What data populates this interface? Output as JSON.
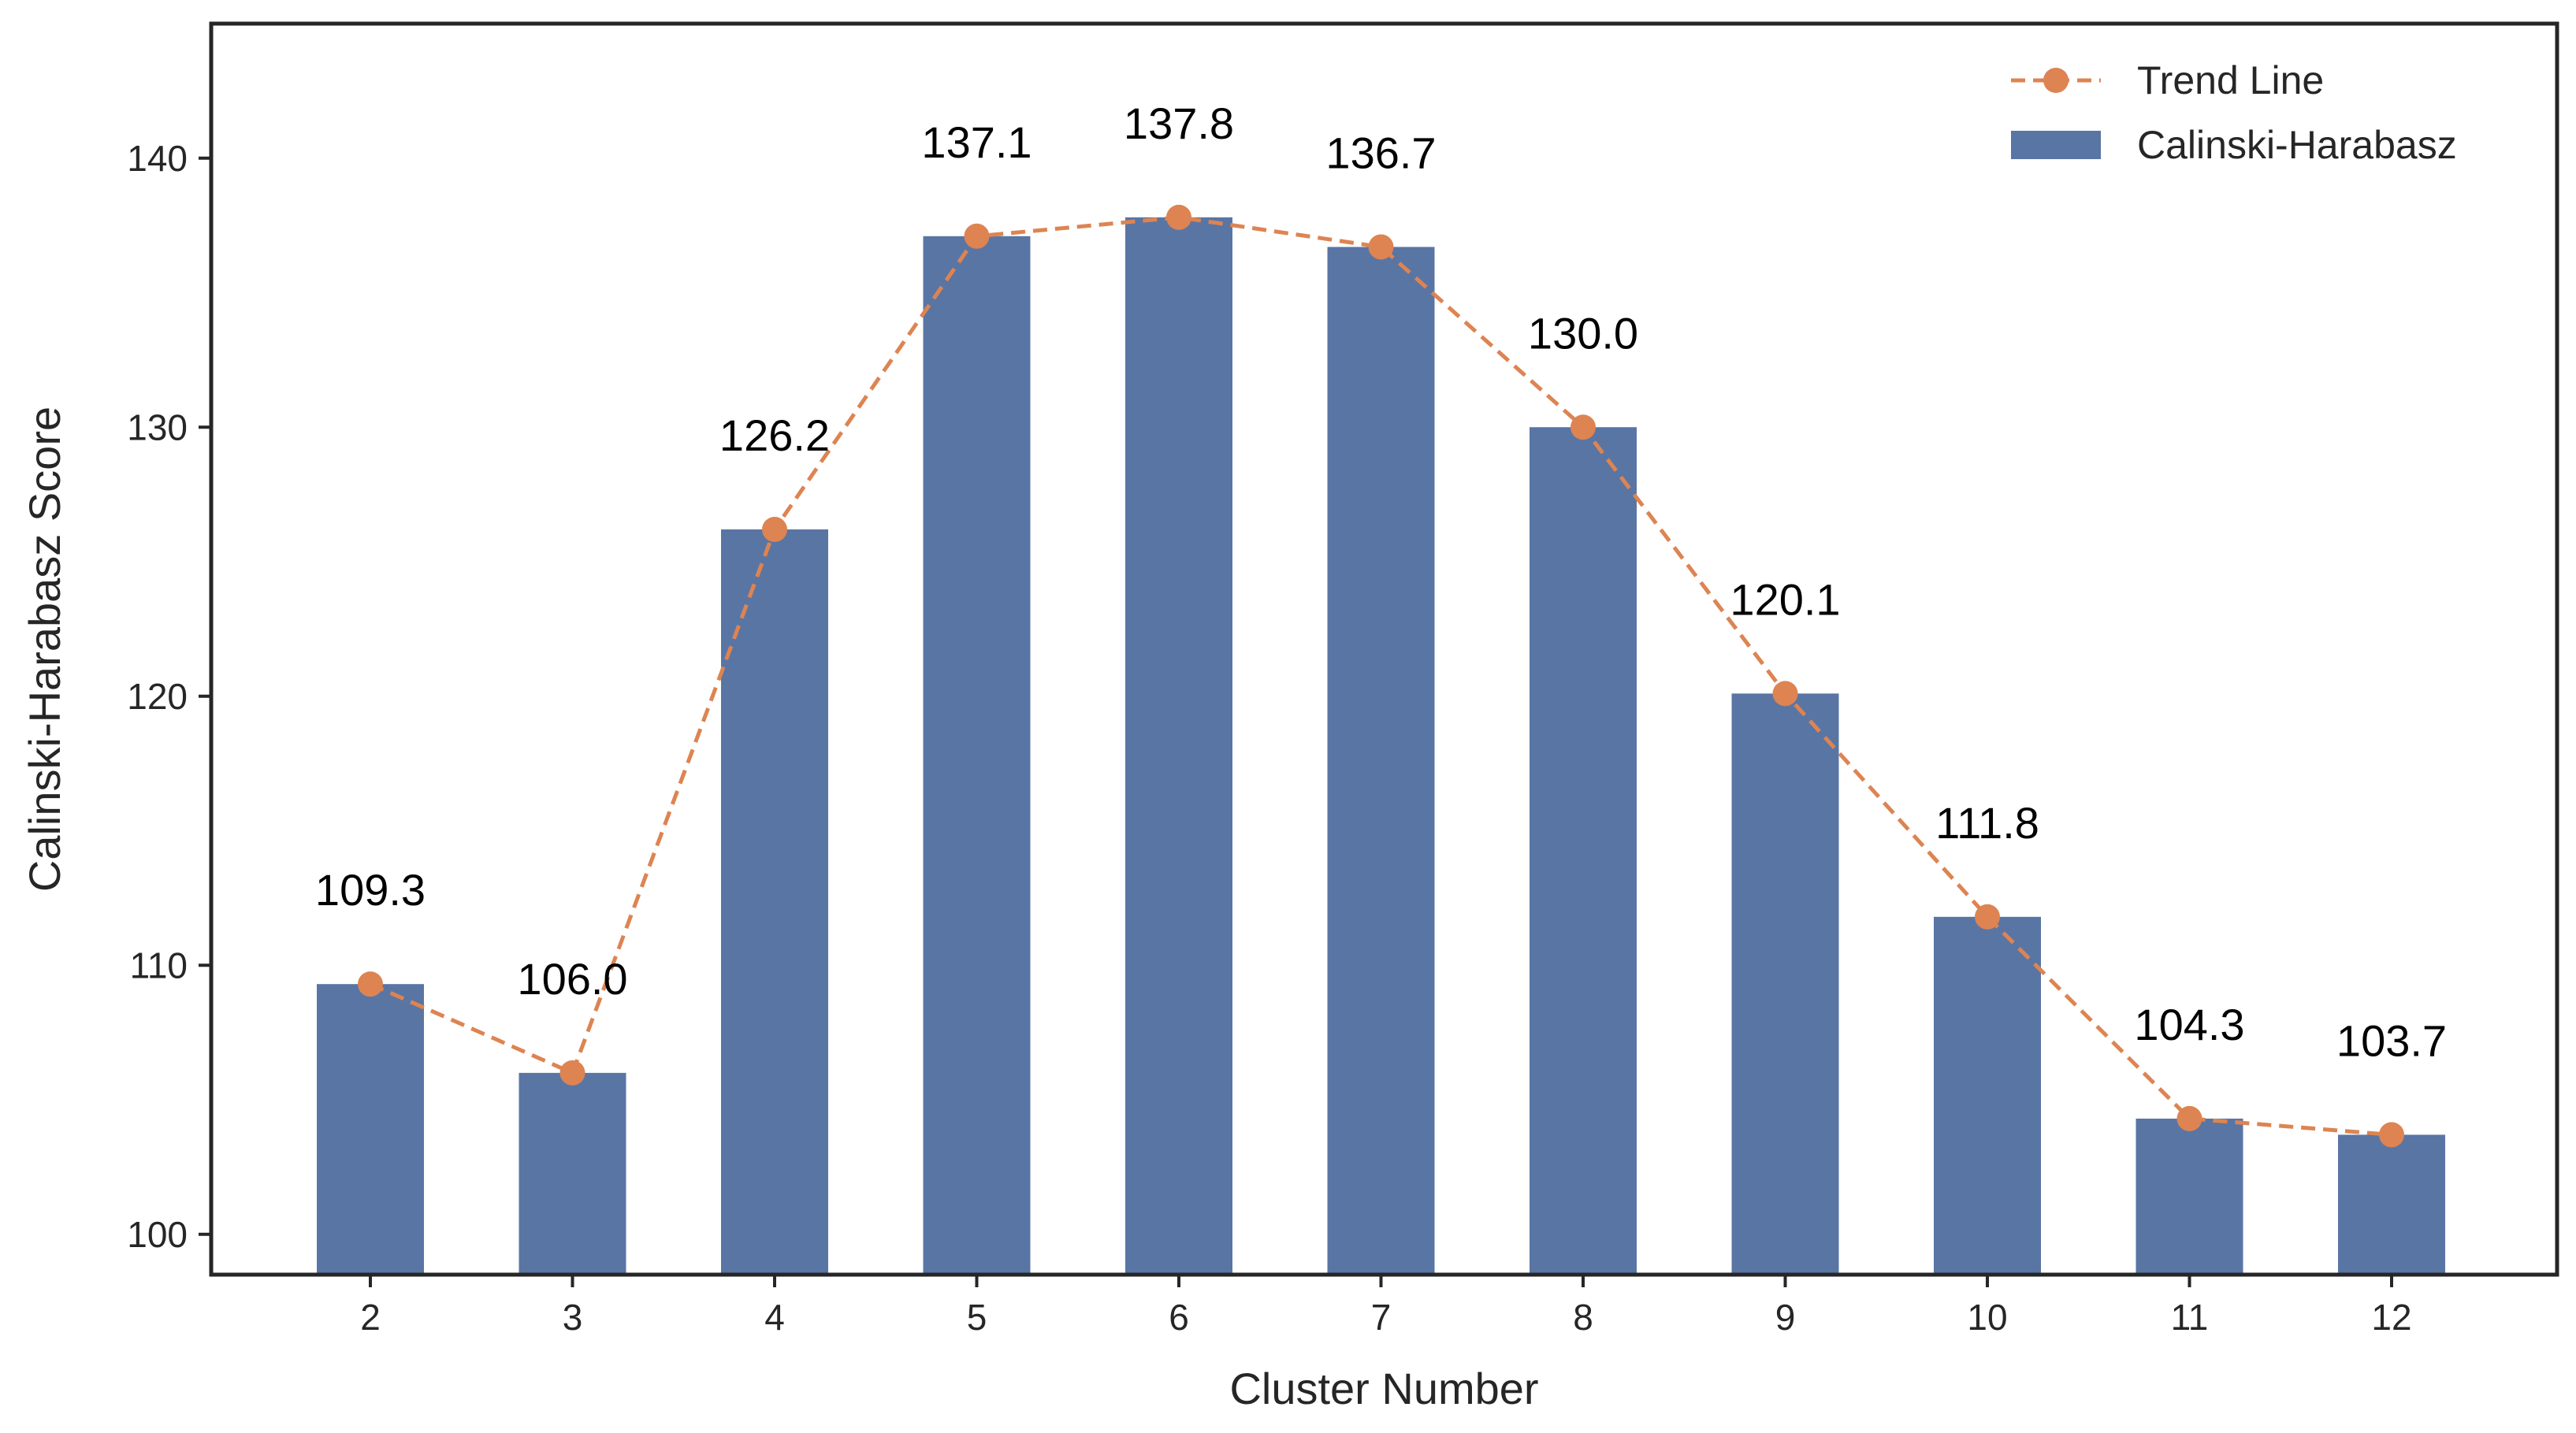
{
  "chart_data": {
    "type": "bar",
    "categories": [
      "2",
      "3",
      "4",
      "5",
      "6",
      "7",
      "8",
      "9",
      "10",
      "11",
      "12"
    ],
    "series": [
      {
        "name": "Calinski-Harabasz",
        "kind": "bar",
        "color": "#5975a4",
        "values": [
          109.3,
          106.0,
          126.2,
          137.1,
          137.8,
          136.7,
          130.0,
          120.1,
          111.8,
          104.3,
          103.7
        ]
      },
      {
        "name": "Trend Line",
        "kind": "line",
        "line_style": "dashed",
        "marker": "circle",
        "color": "#dd8452",
        "values": [
          109.3,
          106.0,
          126.2,
          137.1,
          137.8,
          136.7,
          130.0,
          120.1,
          111.8,
          104.3,
          103.7
        ]
      }
    ],
    "data_labels": [
      "109.3",
      "106.0",
      "126.2",
      "137.1",
      "137.8",
      "136.7",
      "130.0",
      "120.1",
      "111.8",
      "104.3",
      "103.7"
    ],
    "xlabel": "Cluster Number",
    "ylabel": "Calinski-Harabasz Score",
    "ylim": [
      98.5,
      145
    ],
    "yticks": [
      100,
      110,
      120,
      130,
      140
    ],
    "grid": false,
    "legend_position": "top-right",
    "legend_order": [
      "Trend Line",
      "Calinski-Harabasz"
    ]
  }
}
